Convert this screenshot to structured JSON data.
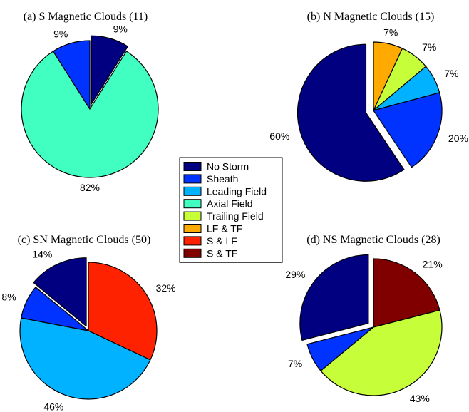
{
  "legend": {
    "entries": [
      {
        "label": "No Storm",
        "color": "#000080"
      },
      {
        "label": "Sheath",
        "color": "#0033ff"
      },
      {
        "label": "Leading Field",
        "color": "#00b2ff"
      },
      {
        "label": "Axial Field",
        "color": "#40ffc0"
      },
      {
        "label": "Trailing Field",
        "color": "#c6ff39"
      },
      {
        "label": "LF & TF",
        "color": "#ffaa00"
      },
      {
        "label": "S & LF",
        "color": "#ff2200"
      },
      {
        "label": "S & TF",
        "color": "#800000"
      }
    ]
  },
  "chart_data": [
    {
      "type": "pie",
      "title": "(a) S Magnetic Clouds (11)",
      "slices": [
        {
          "category": "No Storm",
          "percent": 9,
          "label": "9%",
          "exploded": true
        },
        {
          "category": "Axial Field",
          "percent": 82,
          "label": "82%",
          "exploded": false
        },
        {
          "category": "Sheath",
          "percent": 9,
          "label": "9%",
          "exploded": false
        }
      ]
    },
    {
      "type": "pie",
      "title": "(b) N Magnetic Clouds (15)",
      "slices": [
        {
          "category": "LF & TF",
          "percent": 7,
          "label": "7%",
          "exploded": false
        },
        {
          "category": "Trailing Field",
          "percent": 7,
          "label": "7%",
          "exploded": false
        },
        {
          "category": "Leading Field",
          "percent": 7,
          "label": "7%",
          "exploded": false
        },
        {
          "category": "Sheath",
          "percent": 20,
          "label": "20%",
          "exploded": false
        },
        {
          "category": "No Storm",
          "percent": 60,
          "label": "60%",
          "exploded": true
        }
      ]
    },
    {
      "type": "pie",
      "title": "(c) SN Magnetic Clouds (50)",
      "slices": [
        {
          "category": "S & LF",
          "percent": 32,
          "label": "32%",
          "exploded": false
        },
        {
          "category": "Leading Field",
          "percent": 46,
          "label": "46%",
          "exploded": false
        },
        {
          "category": "Sheath",
          "percent": 8,
          "label": "8%",
          "exploded": false
        },
        {
          "category": "No Storm",
          "percent": 14,
          "label": "14%",
          "exploded": true
        }
      ]
    },
    {
      "type": "pie",
      "title": "(d) NS Magnetic Clouds (28)",
      "slices": [
        {
          "category": "S & TF",
          "percent": 21,
          "label": "21%",
          "exploded": false
        },
        {
          "category": "Trailing Field",
          "percent": 43,
          "label": "43%",
          "exploded": false
        },
        {
          "category": "Sheath",
          "percent": 7,
          "label": "7%",
          "exploded": false
        },
        {
          "category": "No Storm",
          "percent": 29,
          "label": "29%",
          "exploded": true
        }
      ]
    }
  ]
}
